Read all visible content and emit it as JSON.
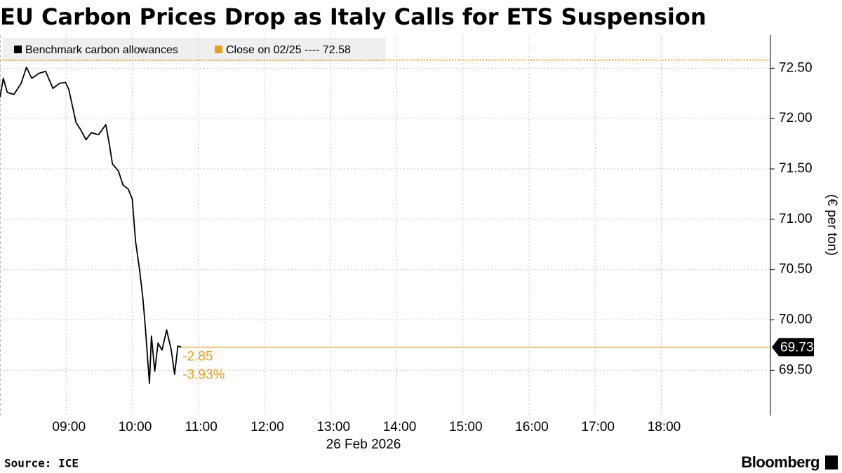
{
  "chart_data": {
    "type": "line",
    "title": "EU Carbon Prices Drop as Italy Calls for ETS Suspension",
    "xlabel": "26 Feb 2026",
    "ylabel": "(€ per ton)",
    "x": [
      8.0,
      8.05,
      8.11,
      8.21,
      8.32,
      8.4,
      8.48,
      8.59,
      8.69,
      8.8,
      8.9,
      8.99,
      9.04,
      9.09,
      9.15,
      9.22,
      9.3,
      9.38,
      9.49,
      9.6,
      9.65,
      9.7,
      9.79,
      9.86,
      9.94,
      10.0,
      10.05,
      10.11,
      10.16,
      10.2,
      10.23,
      10.26,
      10.29,
      10.34,
      10.39,
      10.45,
      10.52,
      10.59,
      10.64,
      10.69,
      10.74
    ],
    "series": [
      {
        "name": "Benchmark carbon allowances",
        "color": "#000000",
        "values": [
          72.21,
          72.4,
          72.26,
          72.24,
          72.35,
          72.51,
          72.4,
          72.45,
          72.47,
          72.3,
          72.35,
          72.36,
          72.29,
          72.14,
          71.96,
          71.89,
          71.79,
          71.86,
          71.84,
          71.94,
          71.76,
          71.55,
          71.48,
          71.34,
          71.3,
          71.2,
          70.78,
          70.5,
          70.22,
          69.91,
          69.63,
          69.37,
          69.84,
          69.49,
          69.77,
          69.7,
          69.9,
          69.7,
          69.46,
          69.74,
          69.73
        ]
      }
    ],
    "reference_line": {
      "name": "Close on 02/25 ---- 72.58",
      "value": 72.58,
      "color": "#e8a020"
    },
    "last_value": 69.73,
    "annotations": [
      "-2.85",
      "-3.93%"
    ],
    "xlim": [
      8,
      19.65
    ],
    "xticks": [
      {
        "value": 9,
        "label": "09:00"
      },
      {
        "value": 10,
        "label": "10:00"
      },
      {
        "value": 11,
        "label": "11:00"
      },
      {
        "value": 12,
        "label": "12:00"
      },
      {
        "value": 13,
        "label": "13:00"
      },
      {
        "value": 14,
        "label": "14:00"
      },
      {
        "value": 15,
        "label": "15:00"
      },
      {
        "value": 16,
        "label": "16:00"
      },
      {
        "value": 17,
        "label": "17:00"
      },
      {
        "value": 18,
        "label": "18:00"
      }
    ],
    "ylim": [
      69.05,
      72.83
    ],
    "yticks": [
      {
        "value": 69.5,
        "label": "69.50"
      },
      {
        "value": 70,
        "label": "70.00"
      },
      {
        "value": 70.5,
        "label": "70.50"
      },
      {
        "value": 71,
        "label": "71.00"
      },
      {
        "value": 71.5,
        "label": "71.50"
      },
      {
        "value": 72,
        "label": "72.00"
      },
      {
        "value": 72.5,
        "label": "72.50"
      }
    ],
    "grid": true,
    "source": "Source: ICE",
    "brand": "Bloomberg"
  }
}
